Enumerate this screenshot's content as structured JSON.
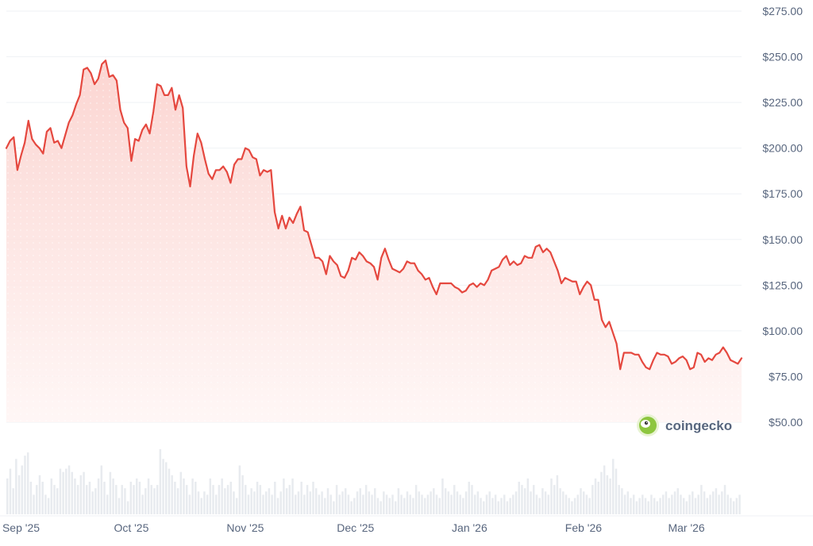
{
  "brand": {
    "name": "coingecko",
    "logo_icon": "gecko-icon"
  },
  "colors": {
    "line": "#e5483f",
    "area_top": "#fbd3cf",
    "area_bottom": "#fff5f4",
    "grid": "#eff2f5",
    "volume": "#e8ebef",
    "text": "#58667e",
    "logo": "#8dc63f"
  },
  "chart_data": {
    "type": "area",
    "title": "",
    "xlabel": "",
    "ylabel": "",
    "y_axis_position": "right",
    "grid": true,
    "ylim": [
      50,
      275
    ],
    "yticks": [
      50,
      75,
      100,
      125,
      150,
      175,
      200,
      225,
      250,
      275
    ],
    "ytick_labels": [
      "$50.00",
      "$75.00",
      "$100.00",
      "$125.00",
      "$150.00",
      "$175.00",
      "$200.00",
      "$225.00",
      "$250.00",
      "$275.00"
    ],
    "x_range": [
      "2025-08-28",
      "2026-03-13"
    ],
    "xticks": [
      {
        "date": "2025-09-01",
        "label": "Sep '25"
      },
      {
        "date": "2025-10-01",
        "label": "Oct '25"
      },
      {
        "date": "2025-11-01",
        "label": "Nov '25"
      },
      {
        "date": "2025-12-01",
        "label": "Dec '25"
      },
      {
        "date": "2026-01-01",
        "label": "Jan '26"
      },
      {
        "date": "2026-02-01",
        "label": "Feb '26"
      },
      {
        "date": "2026-03-01",
        "label": "Mar '26"
      }
    ],
    "series": [
      {
        "kind": "price",
        "points": [
          [
            "2025-08-28",
            200
          ],
          [
            "2025-08-29",
            204
          ],
          [
            "2025-08-30",
            206
          ],
          [
            "2025-08-31",
            188
          ],
          [
            "2025-09-01",
            196
          ],
          [
            "2025-09-02",
            203
          ],
          [
            "2025-09-03",
            215
          ],
          [
            "2025-09-04",
            205
          ],
          [
            "2025-09-05",
            202
          ],
          [
            "2025-09-06",
            200
          ],
          [
            "2025-09-07",
            197
          ],
          [
            "2025-09-08",
            209
          ],
          [
            "2025-09-09",
            211
          ],
          [
            "2025-09-10",
            203
          ],
          [
            "2025-09-11",
            204
          ],
          [
            "2025-09-12",
            200
          ],
          [
            "2025-09-13",
            207
          ],
          [
            "2025-09-14",
            214
          ],
          [
            "2025-09-15",
            218
          ],
          [
            "2025-09-16",
            224
          ],
          [
            "2025-09-17",
            229
          ],
          [
            "2025-09-18",
            243
          ],
          [
            "2025-09-19",
            244
          ],
          [
            "2025-09-20",
            241
          ],
          [
            "2025-09-21",
            235
          ],
          [
            "2025-09-22",
            238
          ],
          [
            "2025-09-23",
            246
          ],
          [
            "2025-09-24",
            248
          ],
          [
            "2025-09-25",
            239
          ],
          [
            "2025-09-26",
            240
          ],
          [
            "2025-09-27",
            237
          ],
          [
            "2025-09-28",
            221
          ],
          [
            "2025-09-29",
            214
          ],
          [
            "2025-09-30",
            211
          ],
          [
            "2025-10-01",
            193
          ],
          [
            "2025-10-02",
            205
          ],
          [
            "2025-10-03",
            204
          ],
          [
            "2025-10-04",
            210
          ],
          [
            "2025-10-05",
            213
          ],
          [
            "2025-10-06",
            208
          ],
          [
            "2025-10-07",
            220
          ],
          [
            "2025-10-08",
            235
          ],
          [
            "2025-10-09",
            234
          ],
          [
            "2025-10-10",
            229
          ],
          [
            "2025-10-11",
            229
          ],
          [
            "2025-10-12",
            233
          ],
          [
            "2025-10-13",
            221
          ],
          [
            "2025-10-14",
            229
          ],
          [
            "2025-10-15",
            222
          ],
          [
            "2025-10-16",
            190
          ],
          [
            "2025-10-17",
            179
          ],
          [
            "2025-10-18",
            196
          ],
          [
            "2025-10-19",
            208
          ],
          [
            "2025-10-20",
            203
          ],
          [
            "2025-10-21",
            194
          ],
          [
            "2025-10-22",
            186
          ],
          [
            "2025-10-23",
            183
          ],
          [
            "2025-10-24",
            188
          ],
          [
            "2025-10-25",
            188
          ],
          [
            "2025-10-26",
            190
          ],
          [
            "2025-10-27",
            187
          ],
          [
            "2025-10-28",
            181
          ],
          [
            "2025-10-29",
            191
          ],
          [
            "2025-10-30",
            194
          ],
          [
            "2025-10-31",
            194
          ],
          [
            "2025-11-01",
            200
          ],
          [
            "2025-11-02",
            199
          ],
          [
            "2025-11-03",
            195
          ],
          [
            "2025-11-04",
            194
          ],
          [
            "2025-11-05",
            185
          ],
          [
            "2025-11-06",
            188
          ],
          [
            "2025-11-07",
            187
          ],
          [
            "2025-11-08",
            188
          ],
          [
            "2025-11-09",
            165
          ],
          [
            "2025-11-10",
            156
          ],
          [
            "2025-11-11",
            163
          ],
          [
            "2025-11-12",
            156
          ],
          [
            "2025-11-13",
            162
          ],
          [
            "2025-11-14",
            159
          ],
          [
            "2025-11-15",
            164
          ],
          [
            "2025-11-16",
            168
          ],
          [
            "2025-11-17",
            155
          ],
          [
            "2025-11-18",
            154
          ],
          [
            "2025-11-19",
            147
          ],
          [
            "2025-11-20",
            140
          ],
          [
            "2025-11-21",
            140
          ],
          [
            "2025-11-22",
            138
          ],
          [
            "2025-11-23",
            131
          ],
          [
            "2025-11-24",
            141
          ],
          [
            "2025-11-25",
            138
          ],
          [
            "2025-11-26",
            136
          ],
          [
            "2025-11-27",
            130
          ],
          [
            "2025-11-28",
            129
          ],
          [
            "2025-11-29",
            133
          ],
          [
            "2025-11-30",
            140
          ],
          [
            "2025-12-01",
            139
          ],
          [
            "2025-12-02",
            143
          ],
          [
            "2025-12-03",
            141
          ],
          [
            "2025-12-04",
            138
          ],
          [
            "2025-12-05",
            137
          ],
          [
            "2025-12-06",
            135
          ],
          [
            "2025-12-07",
            128
          ],
          [
            "2025-12-08",
            140
          ],
          [
            "2025-12-09",
            145
          ],
          [
            "2025-12-10",
            139
          ],
          [
            "2025-12-11",
            134
          ],
          [
            "2025-12-12",
            133
          ],
          [
            "2025-12-13",
            132
          ],
          [
            "2025-12-14",
            134
          ],
          [
            "2025-12-15",
            138
          ],
          [
            "2025-12-16",
            137
          ],
          [
            "2025-12-17",
            137
          ],
          [
            "2025-12-18",
            133
          ],
          [
            "2025-12-19",
            131
          ],
          [
            "2025-12-20",
            128
          ],
          [
            "2025-12-21",
            129
          ],
          [
            "2025-12-22",
            124
          ],
          [
            "2025-12-23",
            120
          ],
          [
            "2025-12-24",
            126
          ],
          [
            "2025-12-25",
            126
          ],
          [
            "2025-12-26",
            126
          ],
          [
            "2025-12-27",
            126
          ],
          [
            "2025-12-28",
            124
          ],
          [
            "2025-12-29",
            123
          ],
          [
            "2025-12-30",
            121
          ],
          [
            "2025-12-31",
            122
          ],
          [
            "2026-01-01",
            125
          ],
          [
            "2026-01-02",
            126
          ],
          [
            "2026-01-03",
            124
          ],
          [
            "2026-01-04",
            126
          ],
          [
            "2026-01-05",
            125
          ],
          [
            "2026-01-06",
            128
          ],
          [
            "2026-01-07",
            133
          ],
          [
            "2026-01-08",
            134
          ],
          [
            "2026-01-09",
            135
          ],
          [
            "2026-01-10",
            139
          ],
          [
            "2026-01-11",
            141
          ],
          [
            "2026-01-12",
            136
          ],
          [
            "2026-01-13",
            138
          ],
          [
            "2026-01-14",
            136
          ],
          [
            "2026-01-15",
            137
          ],
          [
            "2026-01-16",
            141
          ],
          [
            "2026-01-17",
            140
          ],
          [
            "2026-01-18",
            140
          ],
          [
            "2026-01-19",
            146
          ],
          [
            "2026-01-20",
            147
          ],
          [
            "2026-01-21",
            143
          ],
          [
            "2026-01-22",
            145
          ],
          [
            "2026-01-23",
            143
          ],
          [
            "2026-01-24",
            138
          ],
          [
            "2026-01-25",
            133
          ],
          [
            "2026-01-26",
            126
          ],
          [
            "2026-01-27",
            129
          ],
          [
            "2026-01-28",
            128
          ],
          [
            "2026-01-29",
            127
          ],
          [
            "2026-01-30",
            127
          ],
          [
            "2026-01-31",
            120
          ],
          [
            "2026-02-01",
            124
          ],
          [
            "2026-02-02",
            127
          ],
          [
            "2026-02-03",
            125
          ],
          [
            "2026-02-04",
            117
          ],
          [
            "2026-02-05",
            117
          ],
          [
            "2026-02-06",
            106
          ],
          [
            "2026-02-07",
            102
          ],
          [
            "2026-02-08",
            105
          ],
          [
            "2026-02-09",
            99
          ],
          [
            "2026-02-10",
            93
          ],
          [
            "2026-02-11",
            79
          ],
          [
            "2026-02-12",
            88
          ],
          [
            "2026-02-13",
            88
          ],
          [
            "2026-02-14",
            88
          ],
          [
            "2026-02-15",
            87
          ],
          [
            "2026-02-16",
            87
          ],
          [
            "2026-02-17",
            83
          ],
          [
            "2026-02-18",
            80
          ],
          [
            "2026-02-19",
            79
          ],
          [
            "2026-02-20",
            84
          ],
          [
            "2026-02-21",
            88
          ],
          [
            "2026-02-22",
            87
          ],
          [
            "2026-02-23",
            87
          ],
          [
            "2026-02-24",
            86
          ],
          [
            "2026-02-25",
            82
          ],
          [
            "2026-02-26",
            83
          ],
          [
            "2026-02-27",
            85
          ],
          [
            "2026-02-28",
            86
          ],
          [
            "2026-03-01",
            84
          ],
          [
            "2026-03-02",
            79
          ],
          [
            "2026-03-03",
            80
          ],
          [
            "2026-03-04",
            88
          ],
          [
            "2026-03-05",
            87
          ],
          [
            "2026-03-06",
            83
          ],
          [
            "2026-03-07",
            85
          ],
          [
            "2026-03-08",
            84
          ],
          [
            "2026-03-09",
            87
          ],
          [
            "2026-03-10",
            88
          ],
          [
            "2026-03-11",
            91
          ],
          [
            "2026-03-12",
            88
          ],
          [
            "2026-03-13",
            84
          ],
          [
            "2026-03-14",
            83
          ],
          [
            "2026-03-15",
            82
          ],
          [
            "2026-03-16",
            85
          ]
        ]
      },
      {
        "kind": "volume",
        "relative_values": [
          0.55,
          0.7,
          0.4,
          0.85,
          0.6,
          0.75,
          0.9,
          0.95,
          0.5,
          0.3,
          0.45,
          0.6,
          0.5,
          0.3,
          0.25,
          0.55,
          0.45,
          0.4,
          0.7,
          0.65,
          0.7,
          0.75,
          0.65,
          0.55,
          0.45,
          0.6,
          0.65,
          0.45,
          0.5,
          0.35,
          0.4,
          0.55,
          0.75,
          0.5,
          0.3,
          0.65,
          0.55,
          0.45,
          0.25,
          0.45,
          0.4,
          0.2,
          0.5,
          0.45,
          0.55,
          0.5,
          0.3,
          0.4,
          0.55,
          0.45,
          0.4,
          0.45,
          1.0,
          0.85,
          0.8,
          0.7,
          0.6,
          0.5,
          0.4,
          0.65,
          0.55,
          0.45,
          0.3,
          0.55,
          0.5,
          0.35,
          0.25,
          0.35,
          0.3,
          0.55,
          0.45,
          0.3,
          0.45,
          0.55,
          0.4,
          0.45,
          0.5,
          0.35,
          0.25,
          0.75,
          0.6,
          0.45,
          0.3,
          0.4,
          0.35,
          0.5,
          0.45,
          0.3,
          0.35,
          0.4,
          0.3,
          0.5,
          0.25,
          0.35,
          0.55,
          0.4,
          0.45,
          0.55,
          0.3,
          0.35,
          0.5,
          0.3,
          0.45,
          0.35,
          0.5,
          0.4,
          0.3,
          0.35,
          0.25,
          0.4,
          0.3,
          0.2,
          0.45,
          0.3,
          0.35,
          0.4,
          0.3,
          0.2,
          0.25,
          0.35,
          0.4,
          0.3,
          0.45,
          0.35,
          0.3,
          0.4,
          0.25,
          0.2,
          0.35,
          0.3,
          0.25,
          0.3,
          0.2,
          0.4,
          0.3,
          0.25,
          0.35,
          0.3,
          0.25,
          0.45,
          0.35,
          0.3,
          0.25,
          0.3,
          0.35,
          0.4,
          0.3,
          0.25,
          0.55,
          0.4,
          0.35,
          0.3,
          0.45,
          0.35,
          0.3,
          0.25,
          0.35,
          0.5,
          0.45,
          0.3,
          0.35,
          0.25,
          0.2,
          0.3,
          0.35,
          0.25,
          0.3,
          0.2,
          0.25,
          0.3,
          0.2,
          0.25,
          0.3,
          0.35,
          0.5,
          0.45,
          0.4,
          0.55,
          0.35,
          0.45,
          0.3,
          0.25,
          0.4,
          0.35,
          0.3,
          0.55,
          0.45,
          0.6,
          0.4,
          0.35,
          0.3,
          0.25,
          0.2,
          0.25,
          0.3,
          0.4,
          0.35,
          0.3,
          0.25,
          0.45,
          0.55,
          0.5,
          0.65,
          0.75,
          0.6,
          0.55,
          0.85,
          0.7,
          0.45,
          0.4,
          0.3,
          0.35,
          0.25,
          0.3,
          0.2,
          0.25,
          0.3,
          0.25,
          0.2,
          0.3,
          0.25,
          0.2,
          0.25,
          0.3,
          0.35,
          0.25,
          0.3,
          0.35,
          0.4,
          0.3,
          0.25,
          0.2,
          0.3,
          0.35,
          0.25,
          0.3,
          0.45,
          0.35,
          0.25,
          0.3,
          0.35,
          0.4,
          0.3,
          0.35,
          0.45,
          0.3,
          0.25,
          0.2,
          0.25,
          0.3
        ]
      }
    ]
  }
}
